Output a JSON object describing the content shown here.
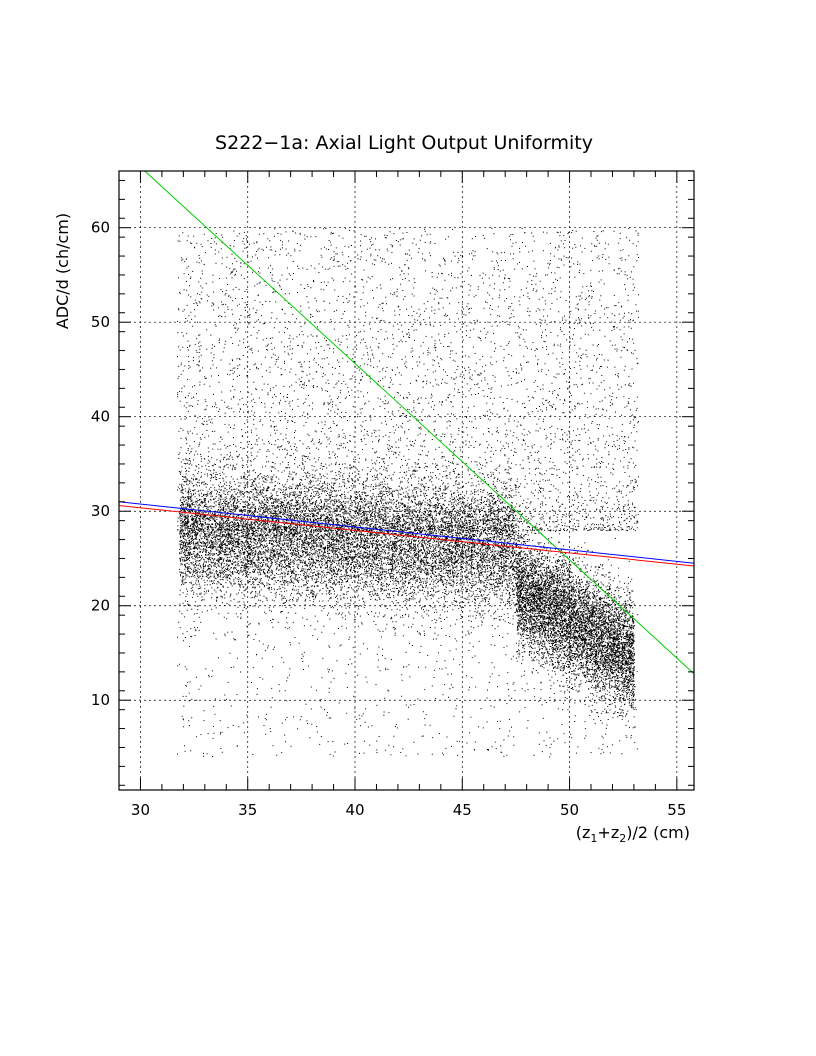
{
  "chart_data": {
    "type": "scatter",
    "title": "S222−1a: Axial Light Output Uniformity",
    "xlabel": {
      "base": "(z",
      "sub1": "1",
      "mid": "+z",
      "sub2": "2",
      "end": ")/2 (cm)"
    },
    "ylabel": "ADC/d (ch/cm)",
    "xlim": [
      29.0,
      55.8
    ],
    "ylim": [
      0.5,
      66.0
    ],
    "x_ticks": [
      30,
      35,
      40,
      45,
      50,
      55
    ],
    "x_tick_labels": [
      "30",
      "35",
      "40",
      "45",
      "50",
      "55"
    ],
    "y_ticks": [
      10,
      20,
      30,
      40,
      50,
      60
    ],
    "y_tick_labels": [
      "10",
      "20",
      "30",
      "40",
      "50",
      "60"
    ],
    "grid": true,
    "legend": "none",
    "scatter_cloud": {
      "x_range": [
        31.7,
        53.2
      ],
      "density_note_free": true,
      "core_bands": [
        {
          "x_from": 31.8,
          "x_to": 47.5,
          "y_center_start": 27.5,
          "y_center_end": 26.0,
          "y_spread": 3.2
        },
        {
          "x_from": 47.5,
          "x_to": 53.0,
          "y_center_start": 22.0,
          "y_center_end": 14.5,
          "y_spread": 3.0
        }
      ],
      "color": "#000000"
    },
    "fit_lines": [
      {
        "color": "#00cc00",
        "x": [
          30.2,
          55.8
        ],
        "y": [
          66.0,
          12.8
        ]
      },
      {
        "color": "#0000ff",
        "x": [
          29.0,
          55.8
        ],
        "y": [
          31.0,
          24.5
        ]
      },
      {
        "color": "#ff0000",
        "x": [
          29.0,
          55.8
        ],
        "y": [
          30.6,
          24.2
        ]
      }
    ]
  }
}
